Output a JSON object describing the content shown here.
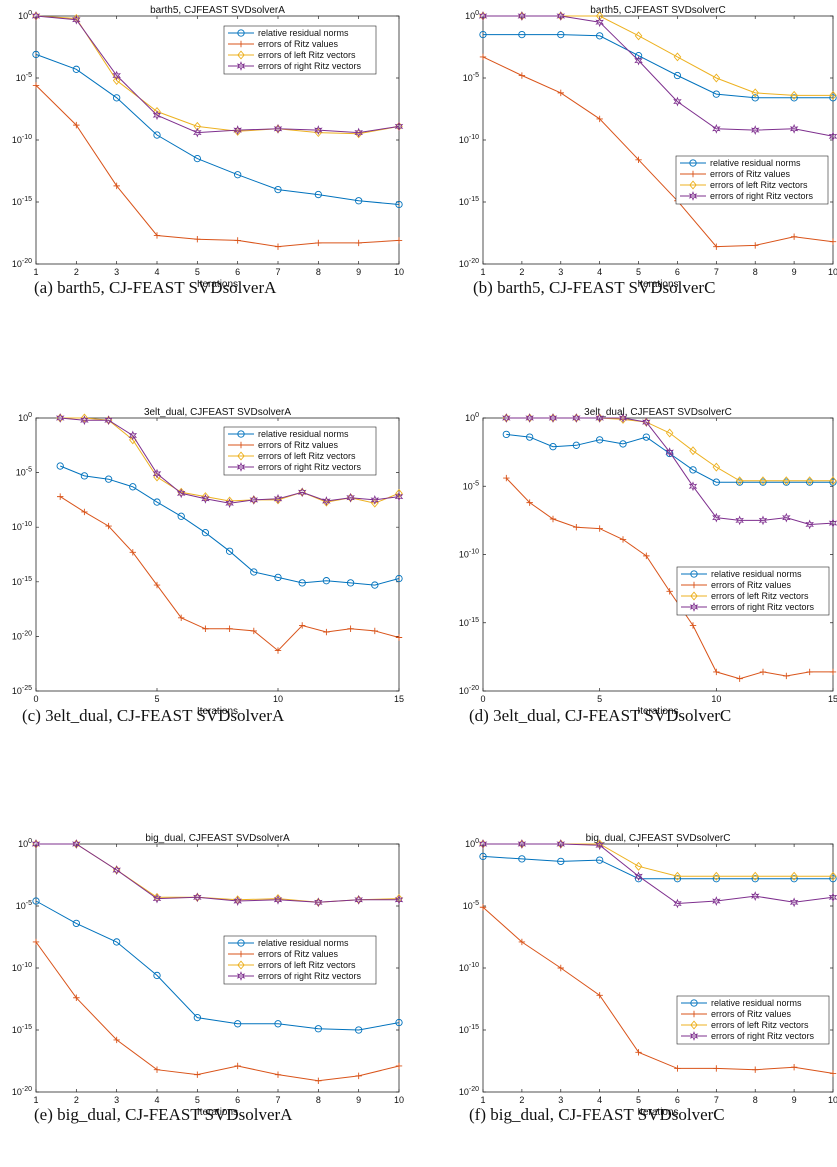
{
  "styles": {
    "residual": {
      "color": "#0072bd",
      "marker": "circle"
    },
    "ritz": {
      "color": "#d95319",
      "marker": "plus"
    },
    "left": {
      "color": "#edb120",
      "marker": "diamond"
    },
    "right": {
      "color": "#7e2f8e",
      "marker": "hexagram"
    }
  },
  "chart_data": [
    {
      "type": "line",
      "panel_id": "a",
      "caption": "(a) barth5, CJ-FEAST SVDsolverA",
      "title": "barth5, CJFEAST SVDsolverA",
      "xlabel": "Iterations",
      "ylabel": "",
      "y_scale": "log",
      "xlim": [
        1,
        10
      ],
      "ylim_exp": [
        -20,
        0
      ],
      "xticks": [
        1,
        2,
        3,
        4,
        5,
        6,
        7,
        8,
        9,
        10
      ],
      "xtick_labels": [
        "1",
        "2",
        "3",
        "4",
        "5",
        "6",
        "7",
        "8",
        "9",
        "10"
      ],
      "yticks": [
        0,
        -5,
        -10,
        -15,
        -20
      ],
      "grid": false,
      "legend_position": "top-right",
      "series": [
        {
          "name": "relative residual norms",
          "style": "residual",
          "x": [
            1,
            2,
            3,
            4,
            5,
            6,
            7,
            8,
            9,
            10
          ],
          "log10_y": [
            -3.1,
            -4.3,
            -6.6,
            -9.6,
            -11.5,
            -12.8,
            -14.0,
            -14.4,
            -14.9,
            -15.2
          ]
        },
        {
          "name": "errors of Ritz values",
          "style": "ritz",
          "x": [
            1,
            2,
            3,
            4,
            5,
            6,
            7,
            8,
            9,
            10
          ],
          "log10_y": [
            -5.6,
            -8.8,
            -13.7,
            -17.7,
            -18.0,
            -18.1,
            -18.6,
            -18.3,
            -18.3,
            -18.1
          ]
        },
        {
          "name": "errors of left Ritz vectors",
          "style": "left",
          "x": [
            1,
            2,
            3,
            4,
            5,
            6,
            7,
            8,
            9,
            10
          ],
          "log10_y": [
            0.0,
            -0.2,
            -5.2,
            -7.7,
            -8.9,
            -9.3,
            -9.1,
            -9.4,
            -9.5,
            -8.9
          ]
        },
        {
          "name": "errors of right Ritz vectors",
          "style": "right",
          "x": [
            1,
            2,
            3,
            4,
            5,
            6,
            7,
            8,
            9,
            10
          ],
          "log10_y": [
            0.0,
            -0.3,
            -4.8,
            -8.0,
            -9.4,
            -9.2,
            -9.1,
            -9.2,
            -9.4,
            -8.9
          ]
        }
      ]
    },
    {
      "type": "line",
      "panel_id": "b",
      "caption": "(b) barth5, CJ-FEAST SVDsolverC",
      "title": "barth5, CJFEAST SVDsolverC",
      "xlabel": "Iterations",
      "ylabel": "",
      "y_scale": "log",
      "xlim": [
        1,
        10
      ],
      "ylim_exp": [
        -20,
        0
      ],
      "xticks": [
        1,
        2,
        3,
        4,
        5,
        6,
        7,
        8,
        9,
        10
      ],
      "xtick_labels": [
        "1",
        "2",
        "3",
        "4",
        "5",
        "6",
        "7",
        "8",
        "9",
        "10"
      ],
      "yticks": [
        0,
        -5,
        -10,
        -15,
        -20
      ],
      "grid": false,
      "legend_position": "middle-right",
      "series": [
        {
          "name": "relative residual norms",
          "style": "residual",
          "x": [
            1,
            2,
            3,
            4,
            5,
            6,
            7,
            8,
            9,
            10
          ],
          "log10_y": [
            -1.5,
            -1.5,
            -1.5,
            -1.6,
            -3.2,
            -4.8,
            -6.3,
            -6.6,
            -6.6,
            -6.6
          ]
        },
        {
          "name": "errors of Ritz values",
          "style": "ritz",
          "x": [
            1,
            2,
            3,
            4,
            5,
            6,
            7,
            8,
            9,
            10
          ],
          "log10_y": [
            -3.3,
            -4.8,
            -6.2,
            -8.3,
            -11.6,
            -14.9,
            -18.6,
            -18.5,
            -17.8,
            -18.2
          ]
        },
        {
          "name": "errors of left Ritz vectors",
          "style": "left",
          "x": [
            1,
            2,
            3,
            4,
            5,
            6,
            7,
            8,
            9,
            10
          ],
          "log10_y": [
            0.0,
            0.0,
            0.0,
            0.0,
            -1.6,
            -3.3,
            -5.0,
            -6.2,
            -6.4,
            -6.4
          ]
        },
        {
          "name": "errors of right Ritz vectors",
          "style": "right",
          "x": [
            1,
            2,
            3,
            4,
            5,
            6,
            7,
            8,
            9,
            10
          ],
          "log10_y": [
            0.0,
            0.0,
            0.0,
            -0.5,
            -3.6,
            -6.9,
            -9.1,
            -9.2,
            -9.1,
            -9.7
          ]
        }
      ]
    },
    {
      "type": "line",
      "panel_id": "c",
      "caption": "(c) 3elt_dual, CJ-FEAST SVDsolverA",
      "title": "3elt_dual, CJFEAST SVDsolverA",
      "xlabel": "Iterations",
      "ylabel": "",
      "y_scale": "log",
      "xlim": [
        0,
        15
      ],
      "ylim_exp": [
        -25,
        0
      ],
      "xticks": [
        0,
        5,
        10,
        15
      ],
      "xtick_labels": [
        "0",
        "5",
        "10",
        "15"
      ],
      "yticks": [
        0,
        -5,
        -10,
        -15,
        -20,
        -25
      ],
      "grid": false,
      "legend_position": "top-right",
      "series": [
        {
          "name": "relative residual norms",
          "style": "residual",
          "x": [
            1,
            2,
            3,
            4,
            5,
            6,
            7,
            8,
            9,
            10,
            11,
            12,
            13,
            14,
            15
          ],
          "log10_y": [
            -4.4,
            -5.3,
            -5.6,
            -6.3,
            -7.7,
            -9.0,
            -10.5,
            -12.2,
            -14.1,
            -14.6,
            -15.1,
            -14.9,
            -15.1,
            -15.3,
            -14.7
          ]
        },
        {
          "name": "errors of Ritz values",
          "style": "ritz",
          "x": [
            1,
            2,
            3,
            4,
            5,
            6,
            7,
            8,
            9,
            10,
            11,
            12,
            13,
            14,
            15
          ],
          "log10_y": [
            -7.2,
            -8.6,
            -9.9,
            -12.3,
            -15.3,
            -18.3,
            -19.3,
            -19.3,
            -19.5,
            -21.3,
            -19.0,
            -19.6,
            -19.3,
            -19.5,
            -20.1
          ]
        },
        {
          "name": "errors of left Ritz vectors",
          "style": "left",
          "x": [
            1,
            2,
            3,
            4,
            5,
            6,
            7,
            8,
            9,
            10,
            11,
            12,
            13,
            14,
            15
          ],
          "log10_y": [
            0.0,
            0.0,
            -0.2,
            -2.0,
            -5.4,
            -6.8,
            -7.2,
            -7.6,
            -7.5,
            -7.5,
            -6.8,
            -7.7,
            -7.3,
            -7.8,
            -6.9
          ]
        },
        {
          "name": "errors of right Ritz vectors",
          "style": "right",
          "x": [
            1,
            2,
            3,
            4,
            5,
            6,
            7,
            8,
            9,
            10,
            11,
            12,
            13,
            14,
            15
          ],
          "log10_y": [
            0.0,
            -0.2,
            -0.2,
            -1.6,
            -5.1,
            -6.9,
            -7.4,
            -7.8,
            -7.5,
            -7.4,
            -6.8,
            -7.6,
            -7.3,
            -7.5,
            -7.2
          ]
        }
      ]
    },
    {
      "type": "line",
      "panel_id": "d",
      "caption": "(d) 3elt_dual, CJ-FEAST SVDsolverC",
      "title": "3elt_dual, CJFEAST SVDsolverC",
      "xlabel": "Iterations",
      "ylabel": "",
      "y_scale": "log",
      "xlim": [
        0,
        15
      ],
      "ylim_exp": [
        -20,
        0
      ],
      "xticks": [
        0,
        5,
        10,
        15
      ],
      "xtick_labels": [
        "0",
        "5",
        "10",
        "15"
      ],
      "yticks": [
        0,
        -5,
        -10,
        -15,
        -20
      ],
      "grid": false,
      "legend_position": "middle-right",
      "series": [
        {
          "name": "relative residual norms",
          "style": "residual",
          "x": [
            1,
            2,
            3,
            4,
            5,
            6,
            7,
            8,
            9,
            10,
            11,
            12,
            13,
            14,
            15
          ],
          "log10_y": [
            -1.2,
            -1.4,
            -2.1,
            -2.0,
            -1.6,
            -1.9,
            -1.4,
            -2.6,
            -3.8,
            -4.7,
            -4.7,
            -4.7,
            -4.7,
            -4.7,
            -4.7
          ]
        },
        {
          "name": "errors of Ritz values",
          "style": "ritz",
          "x": [
            1,
            2,
            3,
            4,
            5,
            6,
            7,
            8,
            9,
            10,
            11,
            12,
            13,
            14,
            15
          ],
          "log10_y": [
            -4.4,
            -6.2,
            -7.4,
            -8.0,
            -8.1,
            -8.9,
            -10.1,
            -12.7,
            -15.2,
            -18.6,
            -19.1,
            -18.6,
            -18.9,
            -18.6,
            -18.6
          ]
        },
        {
          "name": "errors of left Ritz vectors",
          "style": "left",
          "x": [
            1,
            2,
            3,
            4,
            5,
            6,
            7,
            8,
            9,
            10,
            11,
            12,
            13,
            14,
            15
          ],
          "log10_y": [
            0.0,
            0.0,
            0.0,
            0.0,
            0.0,
            -0.1,
            -0.3,
            -1.1,
            -2.4,
            -3.6,
            -4.6,
            -4.6,
            -4.6,
            -4.6,
            -4.6
          ]
        },
        {
          "name": "errors of right Ritz vectors",
          "style": "right",
          "x": [
            1,
            2,
            3,
            4,
            5,
            6,
            7,
            8,
            9,
            10,
            11,
            12,
            13,
            14,
            15
          ],
          "log10_y": [
            0.0,
            0.0,
            0.0,
            0.0,
            0.0,
            0.0,
            -0.3,
            -2.5,
            -5.0,
            -7.3,
            -7.5,
            -7.5,
            -7.3,
            -7.8,
            -7.7
          ]
        }
      ]
    },
    {
      "type": "line",
      "panel_id": "e",
      "caption": "(e) big_dual, CJ-FEAST SVDsolverA",
      "title": "big_dual, CJFEAST SVDsolverA",
      "xlabel": "Iterations",
      "ylabel": "",
      "y_scale": "log",
      "xlim": [
        1,
        10
      ],
      "ylim_exp": [
        -20,
        0
      ],
      "xticks": [
        1,
        2,
        3,
        4,
        5,
        6,
        7,
        8,
        9,
        10
      ],
      "xtick_labels": [
        "1",
        "2",
        "3",
        "4",
        "5",
        "6",
        "7",
        "8",
        "9",
        "10"
      ],
      "yticks": [
        0,
        -5,
        -10,
        -15,
        -20
      ],
      "grid": false,
      "legend_position": "middle-right",
      "series": [
        {
          "name": "relative residual norms",
          "style": "residual",
          "x": [
            1,
            2,
            3,
            4,
            5,
            6,
            7,
            8,
            9,
            10
          ],
          "log10_y": [
            -4.6,
            -6.4,
            -7.9,
            -10.6,
            -14.0,
            -14.5,
            -14.5,
            -14.9,
            -15.0,
            -14.4
          ]
        },
        {
          "name": "errors of Ritz values",
          "style": "ritz",
          "x": [
            1,
            2,
            3,
            4,
            5,
            6,
            7,
            8,
            9,
            10
          ],
          "log10_y": [
            -7.9,
            -12.4,
            -15.8,
            -18.2,
            -18.6,
            -17.9,
            -18.6,
            -19.1,
            -18.7,
            -17.9
          ]
        },
        {
          "name": "errors of left Ritz vectors",
          "style": "left",
          "x": [
            1,
            2,
            3,
            4,
            5,
            6,
            7,
            8,
            9,
            10
          ],
          "log10_y": [
            0.0,
            0.0,
            -2.1,
            -4.3,
            -4.3,
            -4.5,
            -4.4,
            -4.7,
            -4.5,
            -4.4
          ]
        },
        {
          "name": "errors of right Ritz vectors",
          "style": "right",
          "x": [
            1,
            2,
            3,
            4,
            5,
            6,
            7,
            8,
            9,
            10
          ],
          "log10_y": [
            0.0,
            0.0,
            -2.1,
            -4.4,
            -4.3,
            -4.6,
            -4.5,
            -4.7,
            -4.5,
            -4.5
          ]
        }
      ]
    },
    {
      "type": "line",
      "panel_id": "f",
      "caption": "(f) big_dual, CJ-FEAST SVDsolverC",
      "title": "big_dual, CJFEAST SVDsolverC",
      "xlabel": "Iterations",
      "ylabel": "",
      "y_scale": "log",
      "xlim": [
        1,
        10
      ],
      "ylim_exp": [
        -20,
        0
      ],
      "xticks": [
        1,
        2,
        3,
        4,
        5,
        6,
        7,
        8,
        9,
        10
      ],
      "xtick_labels": [
        "1",
        "2",
        "3",
        "4",
        "5",
        "6",
        "7",
        "8",
        "9",
        "10"
      ],
      "yticks": [
        0,
        -5,
        -10,
        -15,
        -20
      ],
      "grid": false,
      "legend_position": "middle-right",
      "series": [
        {
          "name": "relative residual norms",
          "style": "residual",
          "x": [
            1,
            2,
            3,
            4,
            5,
            6,
            7,
            8,
            9,
            10
          ],
          "log10_y": [
            -1.0,
            -1.2,
            -1.4,
            -1.3,
            -2.8,
            -2.8,
            -2.8,
            -2.8,
            -2.8,
            -2.8
          ]
        },
        {
          "name": "errors of Ritz values",
          "style": "ritz",
          "x": [
            1,
            2,
            3,
            4,
            5,
            6,
            7,
            8,
            9,
            10
          ],
          "log10_y": [
            -5.1,
            -7.9,
            -10.0,
            -12.2,
            -16.8,
            -18.1,
            -18.1,
            -18.2,
            -18.0,
            -18.5
          ]
        },
        {
          "name": "errors of left Ritz vectors",
          "style": "left",
          "x": [
            1,
            2,
            3,
            4,
            5,
            6,
            7,
            8,
            9,
            10
          ],
          "log10_y": [
            0.0,
            0.0,
            0.0,
            0.0,
            -1.8,
            -2.6,
            -2.6,
            -2.6,
            -2.6,
            -2.6
          ]
        },
        {
          "name": "errors of right Ritz vectors",
          "style": "right",
          "x": [
            1,
            2,
            3,
            4,
            5,
            6,
            7,
            8,
            9,
            10
          ],
          "log10_y": [
            0.0,
            0.0,
            0.0,
            -0.1,
            -2.6,
            -4.8,
            -4.6,
            -4.2,
            -4.7,
            -4.3
          ]
        }
      ]
    }
  ]
}
